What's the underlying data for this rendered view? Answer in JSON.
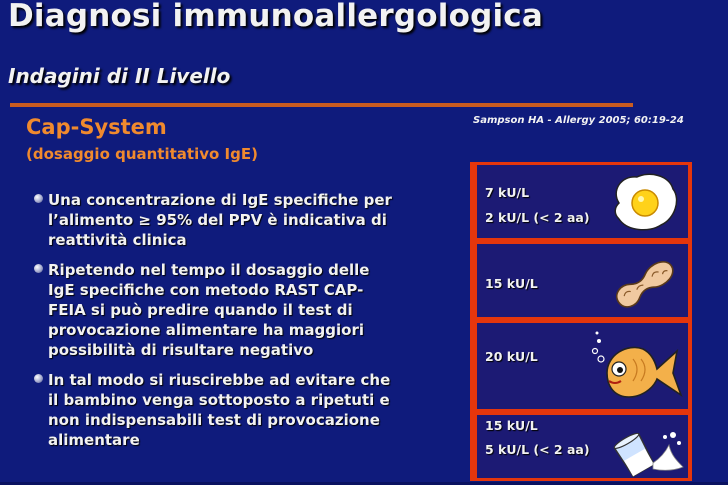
{
  "title": "Diagnosi immunoallergologica",
  "subtitle": "Indagini di II Livello",
  "cap_system": {
    "title": "Cap-System",
    "subtitle": "(dosaggio quantitativo IgE)"
  },
  "reference": "Sampson HA - Allergy 2005; 60:19-24",
  "bullets": [
    "Una concentrazione di IgE specifiche per l’alimento ≥ 95% del PPV è indicativa di reattività clinica",
    "Ripetendo nel tempo il dosaggio delle IgE specifiche con metodo RAST CAP-FEIA si può predire quando il test di provocazione alimentare ha maggiori possibilità di risultare negativo",
    "In tal modo si riuscirebbe ad evitare che il bambino venga sottoposto a ripetuti e non indispensabili test di provocazione alimentare"
  ],
  "panels": [
    {
      "food_icon": "egg-icon",
      "line1": "7 kU/L",
      "line2": "2 kU/L (< 2 aa)"
    },
    {
      "food_icon": "peanut-icon",
      "line1": "15 kU/L"
    },
    {
      "food_icon": "fish-icon",
      "line1": "20 kU/L"
    },
    {
      "food_icon": "milk-icon",
      "line1": "15 kU/L",
      "line2": "5 kU/L (< 2 aa)"
    }
  ],
  "colors": {
    "background": "#0f1b7c",
    "accent_orange": "#f08a2e",
    "rule": "#c95c20",
    "panel_frame": "#e5360c",
    "panel_fill": "#1c1a74"
  }
}
